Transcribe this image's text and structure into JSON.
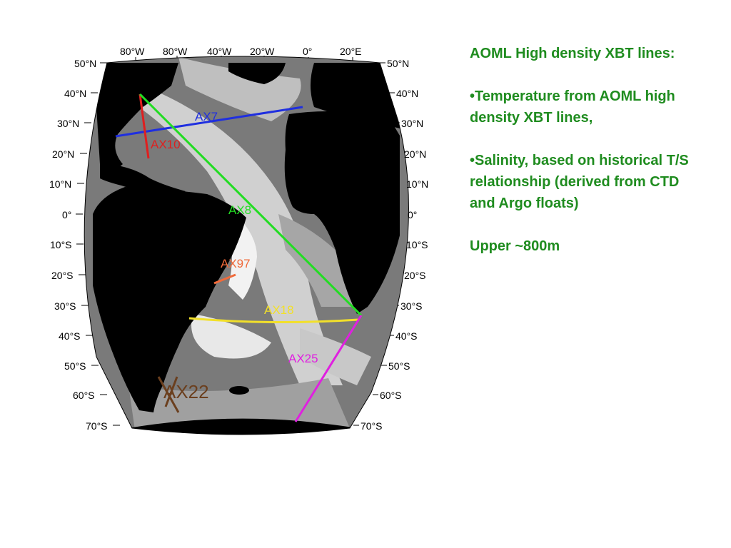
{
  "map": {
    "longitude_labels": [
      "80°W",
      "80°W",
      "40°W",
      "20°W",
      "0°",
      "20°E"
    ],
    "latitude_labels": [
      "50°N",
      "40°N",
      "30°N",
      "20°N",
      "10°N",
      "0°",
      "10°S",
      "20°S",
      "30°S",
      "40°S",
      "50°S",
      "60°S",
      "70°S"
    ],
    "xbt_lines": [
      {
        "name": "AX7",
        "color": "#1f2fe0"
      },
      {
        "name": "AX10",
        "color": "#e01f1f"
      },
      {
        "name": "AX8",
        "color": "#22dd22"
      },
      {
        "name": "AX97",
        "color": "#f06a3a"
      },
      {
        "name": "AX18",
        "color": "#f2e02a"
      },
      {
        "name": "AX25",
        "color": "#e020e0"
      },
      {
        "name": "AX22",
        "color": "#6b3f1e"
      }
    ]
  },
  "notes": {
    "title": "AOML High density XBT lines:",
    "bullet1": "Temperature from AOML high density XBT lines,",
    "bullet2": "Salinity, based on historical T/S relationship (derived from CTD and Argo floats)",
    "depth": "Upper ~800m"
  }
}
